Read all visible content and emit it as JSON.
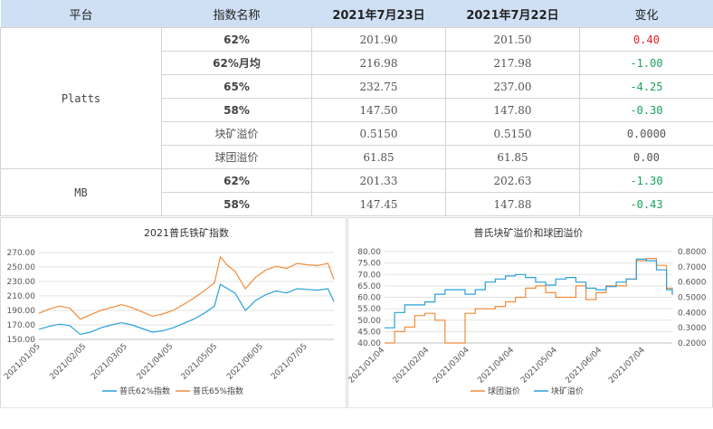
{
  "table": {
    "headers": [
      "平台",
      "指数名称",
      "2021年7月23日",
      "2021年7月22日",
      "变化"
    ],
    "groups": [
      {
        "platform": "Platts",
        "rows": [
          {
            "name": "62%",
            "v1": "201.90",
            "v2": "201.50",
            "chg": "0.40",
            "dir": "up"
          },
          {
            "name": "62%月均",
            "v1": "216.98",
            "v2": "217.98",
            "chg": "-1.00",
            "dir": "down"
          },
          {
            "name": "65%",
            "v1": "232.75",
            "v2": "237.00",
            "chg": "-4.25",
            "dir": "down"
          },
          {
            "name": "58%",
            "v1": "147.50",
            "v2": "147.80",
            "chg": "-0.30",
            "dir": "down"
          },
          {
            "name": "块矿溢价",
            "v1": "0.5150",
            "v2": "0.5150",
            "chg": "0.0000",
            "dir": "flat"
          },
          {
            "name": "球团溢价",
            "v1": "61.85",
            "v2": "61.85",
            "chg": "0.00",
            "dir": "flat"
          }
        ]
      },
      {
        "platform": "MB",
        "rows": [
          {
            "name": "62%",
            "v1": "201.33",
            "v2": "202.63",
            "chg": "-1.30",
            "dir": "down"
          },
          {
            "name": "58%",
            "v1": "147.45",
            "v2": "147.88",
            "chg": "-0.43",
            "dir": "down"
          }
        ]
      }
    ]
  },
  "chart_data": [
    {
      "type": "line",
      "title": "2021普氏铁矿指数",
      "x_ticks": [
        "2021/01/05",
        "2021/02/05",
        "2021/03/05",
        "2021/04/05",
        "2021/05/05",
        "2021/06/05",
        "2021/07/05"
      ],
      "x": [
        "2021/01/04",
        "2021/01/11",
        "2021/01/18",
        "2021/01/25",
        "2021/02/01",
        "2021/02/08",
        "2021/02/15",
        "2021/02/22",
        "2021/03/01",
        "2021/03/08",
        "2021/03/15",
        "2021/03/22",
        "2021/03/29",
        "2021/04/05",
        "2021/04/12",
        "2021/04/19",
        "2021/04/26",
        "2021/05/03",
        "2021/05/07",
        "2021/05/12",
        "2021/05/17",
        "2021/05/24",
        "2021/05/31",
        "2021/06/07",
        "2021/06/14",
        "2021/06/21",
        "2021/06/28",
        "2021/07/05",
        "2021/07/12",
        "2021/07/19",
        "2021/07/23"
      ],
      "series": [
        {
          "name": "普氏62%指数",
          "color": "#2aa0d8",
          "values": [
            164,
            168,
            171,
            169,
            157,
            160,
            166,
            170,
            173,
            170,
            165,
            160,
            162,
            166,
            172,
            178,
            186,
            196,
            226,
            220,
            214,
            190,
            204,
            212,
            217,
            214,
            220,
            219,
            218,
            220,
            202
          ]
        },
        {
          "name": "普氏65%指数",
          "color": "#f08c3a",
          "values": [
            186,
            192,
            196,
            193,
            178,
            184,
            190,
            194,
            198,
            194,
            188,
            182,
            185,
            190,
            198,
            207,
            217,
            228,
            264,
            252,
            244,
            220,
            236,
            246,
            251,
            248,
            255,
            253,
            252,
            255,
            233
          ]
        }
      ],
      "y_ticks": [
        "270.00",
        "250.00",
        "230.00",
        "210.00",
        "190.00",
        "170.00",
        "150.00"
      ],
      "ylim": [
        150,
        270
      ]
    },
    {
      "type": "line",
      "title": "普氏块矿溢价和球团溢价",
      "x_ticks": [
        "2021/01/04",
        "2021/02/04",
        "2021/03/04",
        "2021/04/04",
        "2021/05/04",
        "2021/06/04",
        "2021/07/04"
      ],
      "x": [
        "2021/01/04",
        "2021/01/11",
        "2021/01/18",
        "2021/01/25",
        "2021/02/01",
        "2021/02/08",
        "2021/02/15",
        "2021/02/22",
        "2021/03/01",
        "2021/03/08",
        "2021/03/15",
        "2021/03/22",
        "2021/03/29",
        "2021/04/05",
        "2021/04/12",
        "2021/04/19",
        "2021/04/26",
        "2021/05/03",
        "2021/05/10",
        "2021/05/17",
        "2021/05/24",
        "2021/05/31",
        "2021/06/07",
        "2021/06/14",
        "2021/06/21",
        "2021/06/28",
        "2021/07/05",
        "2021/07/12",
        "2021/07/19",
        "2021/07/23"
      ],
      "series": [
        {
          "name": "球团溢价",
          "axis": "left",
          "color": "#f08c3a",
          "values": [
            40,
            45,
            47,
            52,
            53,
            50,
            40,
            40,
            53,
            55,
            55,
            56,
            58,
            60,
            64,
            65,
            62,
            60,
            60,
            65,
            59,
            62,
            65,
            65,
            68,
            76,
            77,
            74,
            64,
            61.85
          ]
        },
        {
          "name": "块矿溢价",
          "axis": "right",
          "color": "#2aa0d8",
          "values": [
            0.3,
            0.4,
            0.45,
            0.45,
            0.47,
            0.52,
            0.55,
            0.55,
            0.52,
            0.55,
            0.6,
            0.62,
            0.64,
            0.65,
            0.63,
            0.6,
            0.58,
            0.62,
            0.63,
            0.6,
            0.56,
            0.55,
            0.57,
            0.6,
            0.62,
            0.75,
            0.74,
            0.68,
            0.55,
            0.515
          ]
        }
      ],
      "y_ticks": [
        "80.00",
        "75.00",
        "70.00",
        "65.00",
        "60.00",
        "55.00",
        "50.00",
        "45.00",
        "40.00"
      ],
      "y2_ticks": [
        "0.8000",
        "0.7000",
        "0.6000",
        "0.5000",
        "0.4000",
        "0.3000",
        "0.2000"
      ],
      "ylim": [
        40,
        80
      ],
      "y2lim": [
        0.2,
        0.8
      ]
    }
  ]
}
